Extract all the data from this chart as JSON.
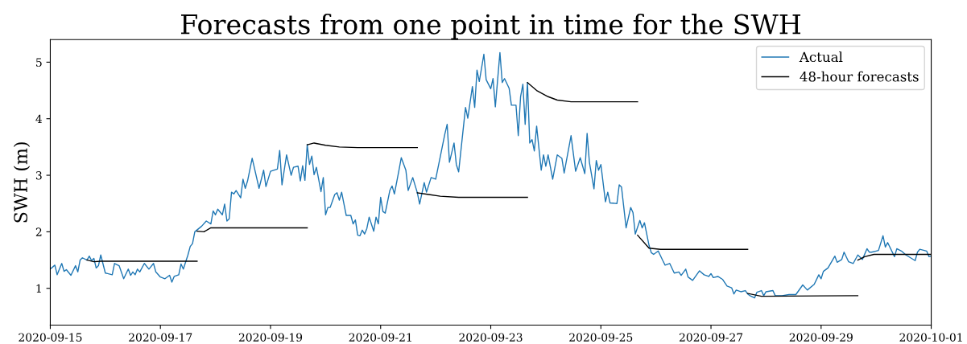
{
  "chart_data": {
    "type": "line",
    "title": "Forecasts from one point in time for the SWH",
    "ylabel": "SWH (m)",
    "xlim": [
      "2020-09-15",
      "2020-10-01"
    ],
    "xticks": [
      "2020-09-15",
      "2020-09-17",
      "2020-09-19",
      "2020-09-21",
      "2020-09-23",
      "2020-09-25",
      "2020-09-27",
      "2020-09-29",
      "2020-10-01"
    ],
    "ylim": [
      0.35,
      5.4
    ],
    "yticks": [
      1,
      2,
      3,
      4,
      5
    ],
    "grid": false,
    "legend": "top right",
    "marker": "none",
    "line_style": "solid",
    "series": [
      {
        "name": "Actual",
        "color": "#1f77b4",
        "x": [
          "2020-09-15T00:00",
          "2020-09-15T02:00",
          "2020-09-15T03:00",
          "2020-09-15T05:00",
          "2020-09-15T06:00",
          "2020-09-15T07:00",
          "2020-09-15T09:00",
          "2020-09-15T11:00",
          "2020-09-15T12:00",
          "2020-09-15T13:00",
          "2020-09-15T14:00",
          "2020-09-15T16:00",
          "2020-09-15T17:00",
          "2020-09-15T18:00",
          "2020-09-15T19:00",
          "2020-09-15T20:00",
          "2020-09-15T21:00",
          "2020-09-15T22:00",
          "2020-09-16T00:00",
          "2020-09-16T01:00",
          "2020-09-16T03:00",
          "2020-09-16T04:00",
          "2020-09-16T06:00",
          "2020-09-16T08:00",
          "2020-09-16T10:00",
          "2020-09-16T11:00",
          "2020-09-16T12:00",
          "2020-09-16T13:00",
          "2020-09-16T14:00",
          "2020-09-16T15:00",
          "2020-09-16T17:00",
          "2020-09-16T19:00",
          "2020-09-16T21:00",
          "2020-09-16T22:00",
          "2020-09-17T00:00",
          "2020-09-17T02:00",
          "2020-09-17T04:00",
          "2020-09-17T05:00",
          "2020-09-17T06:00",
          "2020-09-17T08:00",
          "2020-09-17T09:00",
          "2020-09-17T10:00",
          "2020-09-17T12:00",
          "2020-09-17T13:00",
          "2020-09-17T14:00",
          "2020-09-17T15:00",
          "2020-09-17T18:00",
          "2020-09-17T20:00",
          "2020-09-17T22:00",
          "2020-09-17T23:00",
          "2020-09-18T00:00",
          "2020-09-18T01:00",
          "2020-09-18T03:00",
          "2020-09-18T04:00",
          "2020-09-18T05:00",
          "2020-09-18T06:00",
          "2020-09-18T07:00",
          "2020-09-18T08:00",
          "2020-09-18T09:00",
          "2020-09-18T11:00",
          "2020-09-18T12:00",
          "2020-09-18T13:00",
          "2020-09-18T14:00",
          "2020-09-18T16:00",
          "2020-09-18T19:00",
          "2020-09-18T21:00",
          "2020-09-18T22:00",
          "2020-09-19T00:00",
          "2020-09-19T03:00",
          "2020-09-19T04:00",
          "2020-09-19T05:00",
          "2020-09-19T07:00",
          "2020-09-19T09:00",
          "2020-09-19T10:00",
          "2020-09-19T12:00",
          "2020-09-19T13:00",
          "2020-09-19T14:00",
          "2020-09-19T15:00",
          "2020-09-19T16:00",
          "2020-09-19T17:00",
          "2020-09-19T18:00",
          "2020-09-19T19:00",
          "2020-09-19T20:00",
          "2020-09-19T22:00",
          "2020-09-19T23:00",
          "2020-09-20T00:00",
          "2020-09-20T01:00",
          "2020-09-20T02:00",
          "2020-09-20T04:00",
          "2020-09-20T05:00",
          "2020-09-20T06:00",
          "2020-09-20T07:00",
          "2020-09-20T09:00",
          "2020-09-20T11:00",
          "2020-09-20T12:00",
          "2020-09-20T13:00",
          "2020-09-20T14:00",
          "2020-09-20T15:00",
          "2020-09-20T16:00",
          "2020-09-20T17:00",
          "2020-09-20T18:00",
          "2020-09-20T19:00",
          "2020-09-20T21:00",
          "2020-09-20T22:00",
          "2020-09-20T23:00",
          "2020-09-21T00:00",
          "2020-09-21T01:00",
          "2020-09-21T02:00",
          "2020-09-21T04:00",
          "2020-09-21T05:00",
          "2020-09-21T06:00",
          "2020-09-21T08:00",
          "2020-09-21T09:00",
          "2020-09-21T11:00",
          "2020-09-21T12:00",
          "2020-09-21T14:00",
          "2020-09-21T16:00",
          "2020-09-21T17:00",
          "2020-09-21T19:00",
          "2020-09-21T20:00",
          "2020-09-21T22:00",
          "2020-09-22T00:00",
          "2020-09-22T02:00",
          "2020-09-22T04:00",
          "2020-09-22T05:00",
          "2020-09-22T06:00",
          "2020-09-22T08:00",
          "2020-09-22T09:00",
          "2020-09-22T10:00",
          "2020-09-22T13:00",
          "2020-09-22T14:00",
          "2020-09-22T16:00",
          "2020-09-22T17:00",
          "2020-09-22T18:00",
          "2020-09-22T19:00",
          "2020-09-22T21:00",
          "2020-09-22T22:00",
          "2020-09-23T00:00",
          "2020-09-23T01:00",
          "2020-09-23T02:00",
          "2020-09-23T04:00",
          "2020-09-23T05:00",
          "2020-09-23T06:00",
          "2020-09-23T08:00",
          "2020-09-23T09:00",
          "2020-09-23T11:00",
          "2020-09-23T12:00",
          "2020-09-23T13:00",
          "2020-09-23T14:00",
          "2020-09-23T15:00",
          "2020-09-23T16:00",
          "2020-09-23T17:00",
          "2020-09-23T18:00",
          "2020-09-23T19:00",
          "2020-09-23T20:00",
          "2020-09-23T22:00",
          "2020-09-23T23:00",
          "2020-09-24T00:00",
          "2020-09-24T01:00",
          "2020-09-24T03:00",
          "2020-09-24T05:00",
          "2020-09-24T07:00",
          "2020-09-24T08:00",
          "2020-09-24T11:00",
          "2020-09-24T13:00",
          "2020-09-24T15:00",
          "2020-09-24T17:00",
          "2020-09-24T18:00",
          "2020-09-24T19:00",
          "2020-09-24T21:00",
          "2020-09-24T22:00",
          "2020-09-24T23:00",
          "2020-09-25T00:00",
          "2020-09-25T02:00",
          "2020-09-25T03:00",
          "2020-09-25T04:00",
          "2020-09-25T07:00",
          "2020-09-25T08:00",
          "2020-09-25T09:00",
          "2020-09-25T10:00",
          "2020-09-25T11:00",
          "2020-09-25T13:00",
          "2020-09-25T14:00",
          "2020-09-25T15:00",
          "2020-09-25T17:00",
          "2020-09-25T18:00",
          "2020-09-25T19:00",
          "2020-09-25T21:00",
          "2020-09-25T22:00",
          "2020-09-25T23:00",
          "2020-09-26T01:00",
          "2020-09-26T03:00",
          "2020-09-26T04:00",
          "2020-09-26T06:00",
          "2020-09-26T08:00",
          "2020-09-26T10:00",
          "2020-09-26T11:00",
          "2020-09-26T13:00",
          "2020-09-26T14:00",
          "2020-09-26T16:00",
          "2020-09-26T19:00",
          "2020-09-26T21:00",
          "2020-09-26T23:00",
          "2020-09-27T00:00",
          "2020-09-27T01:00",
          "2020-09-27T03:00",
          "2020-09-27T05:00",
          "2020-09-27T07:00",
          "2020-09-27T09:00",
          "2020-09-27T10:00",
          "2020-09-27T11:00",
          "2020-09-27T13:00",
          "2020-09-27T15:00",
          "2020-09-27T16:00",
          "2020-09-27T17:00",
          "2020-09-27T19:00",
          "2020-09-27T20:00",
          "2020-09-27T22:00",
          "2020-09-27T23:00",
          "2020-09-28T00:00",
          "2020-09-28T03:00",
          "2020-09-28T04:00",
          "2020-09-28T07:00",
          "2020-09-28T10:00",
          "2020-09-28T13:00",
          "2020-09-28T16:00",
          "2020-09-28T18:00",
          "2020-09-28T21:00",
          "2020-09-28T23:00",
          "2020-09-29T00:00",
          "2020-09-29T01:00",
          "2020-09-29T03:00",
          "2020-09-29T06:00",
          "2020-09-29T07:00",
          "2020-09-29T09:00",
          "2020-09-29T10:00",
          "2020-09-29T12:00",
          "2020-09-29T14:00",
          "2020-09-29T16:00",
          "2020-09-29T18:00",
          "2020-09-29T20:00",
          "2020-09-29T21:00",
          "2020-09-29T22:00",
          "2020-09-30T00:00",
          "2020-09-30T01:00",
          "2020-09-30T03:00",
          "2020-09-30T04:00",
          "2020-09-30T05:00",
          "2020-09-30T08:00",
          "2020-09-30T09:00",
          "2020-09-30T11:00",
          "2020-09-30T13:00",
          "2020-09-30T15:00",
          "2020-09-30T17:00",
          "2020-09-30T18:00",
          "2020-09-30T19:00",
          "2020-09-30T22:00",
          "2020-09-30T23:00",
          "2020-10-01T00:00"
        ],
        "values": [
          1.34,
          1.41,
          1.24,
          1.44,
          1.3,
          1.33,
          1.23,
          1.4,
          1.29,
          1.5,
          1.54,
          1.5,
          1.57,
          1.49,
          1.53,
          1.36,
          1.4,
          1.59,
          1.27,
          1.26,
          1.24,
          1.44,
          1.4,
          1.17,
          1.34,
          1.23,
          1.29,
          1.24,
          1.34,
          1.29,
          1.44,
          1.34,
          1.44,
          1.29,
          1.2,
          1.17,
          1.23,
          1.11,
          1.21,
          1.24,
          1.43,
          1.34,
          1.59,
          1.74,
          1.79,
          2.0,
          2.1,
          2.19,
          2.14,
          2.37,
          2.3,
          2.4,
          2.3,
          2.49,
          2.19,
          2.23,
          2.7,
          2.67,
          2.73,
          2.6,
          2.93,
          2.77,
          2.9,
          3.3,
          2.77,
          3.09,
          2.8,
          3.07,
          3.11,
          3.44,
          2.83,
          3.36,
          3.0,
          3.14,
          3.16,
          2.9,
          3.17,
          2.91,
          3.54,
          3.19,
          3.34,
          3.01,
          3.14,
          2.71,
          2.96,
          2.3,
          2.43,
          2.43,
          2.66,
          2.69,
          2.56,
          2.7,
          2.29,
          2.29,
          2.14,
          2.21,
          1.94,
          1.93,
          2.03,
          1.96,
          2.06,
          2.26,
          2.01,
          2.26,
          2.14,
          2.61,
          2.36,
          2.33,
          2.73,
          2.81,
          2.67,
          3.09,
          3.31,
          3.09,
          2.73,
          2.96,
          2.69,
          2.49,
          2.87,
          2.7,
          2.96,
          2.93,
          3.33,
          3.73,
          3.9,
          3.23,
          3.57,
          3.19,
          3.06,
          4.2,
          4.01,
          4.57,
          4.2,
          4.86,
          4.66,
          5.14,
          4.69,
          4.53,
          4.71,
          4.21,
          5.17,
          4.64,
          4.71,
          4.54,
          4.24,
          4.24,
          3.7,
          4.39,
          4.61,
          3.9,
          4.64,
          3.57,
          3.63,
          3.43,
          3.87,
          3.09,
          3.36,
          3.16,
          3.36,
          2.93,
          3.36,
          3.3,
          3.04,
          3.7,
          3.07,
          3.31,
          3.03,
          3.74,
          3.23,
          2.76,
          3.26,
          3.09,
          3.19,
          2.53,
          2.7,
          2.51,
          2.5,
          2.83,
          2.79,
          2.43,
          2.07,
          2.43,
          2.34,
          1.96,
          2.2,
          2.07,
          2.16,
          1.76,
          1.63,
          1.6,
          1.66,
          1.49,
          1.41,
          1.44,
          1.27,
          1.29,
          1.23,
          1.34,
          1.2,
          1.14,
          1.31,
          1.24,
          1.21,
          1.26,
          1.19,
          1.21,
          1.16,
          1.04,
          1.01,
          0.9,
          0.97,
          0.94,
          0.96,
          0.9,
          0.87,
          0.83,
          0.93,
          0.96,
          0.87,
          0.94,
          0.96,
          0.87,
          0.87,
          0.89,
          0.89,
          1.06,
          0.97,
          1.07,
          1.24,
          1.17,
          1.3,
          1.36,
          1.57,
          1.46,
          1.51,
          1.64,
          1.47,
          1.44,
          1.59,
          1.51,
          1.7,
          1.64,
          1.64,
          1.66,
          1.67,
          1.93,
          1.73,
          1.81,
          1.56,
          1.7,
          1.66,
          1.59,
          1.54,
          1.49,
          1.64,
          1.69,
          1.66,
          1.56,
          1.57
        ]
      },
      {
        "name": "48-hour forecasts",
        "color": "#000000",
        "x": [
          "2020-09-15T16:00",
          "2020-09-15T19:00",
          "2020-09-15T22:00",
          "2020-09-17T16:00"
        ],
        "values": [
          1.5,
          1.47,
          1.48,
          1.48
        ]
      },
      {
        "color": "#000000",
        "x": [
          "2020-09-17T16:00",
          "2020-09-17T19:00",
          "2020-09-17T22:00",
          "2020-09-19T16:00"
        ],
        "values": [
          2.01,
          2.0,
          2.07,
          2.07
        ]
      },
      {
        "color": "#000000",
        "x": [
          "2020-09-19T16:00",
          "2020-09-19T19:00",
          "2020-09-20T00:00",
          "2020-09-20T06:00",
          "2020-09-20T14:00",
          "2020-09-21T16:00"
        ],
        "values": [
          3.54,
          3.57,
          3.53,
          3.5,
          3.49,
          3.49
        ]
      },
      {
        "color": "#000000",
        "x": [
          "2020-09-21T16:00",
          "2020-09-21T21:00",
          "2020-09-22T02:00",
          "2020-09-22T10:00",
          "2020-09-23T16:00"
        ],
        "values": [
          2.69,
          2.66,
          2.63,
          2.61,
          2.61
        ]
      },
      {
        "color": "#000000",
        "x": [
          "2020-09-23T16:00",
          "2020-09-23T20:00",
          "2020-09-24T01:00",
          "2020-09-24T05:00",
          "2020-09-24T11:00",
          "2020-09-25T16:00"
        ],
        "values": [
          4.64,
          4.5,
          4.39,
          4.33,
          4.3,
          4.3
        ]
      },
      {
        "color": "#000000",
        "x": [
          "2020-09-25T16:00",
          "2020-09-25T21:00",
          "2020-09-26T02:00",
          "2020-09-27T16:00"
        ],
        "values": [
          1.94,
          1.71,
          1.69,
          1.69
        ]
      },
      {
        "color": "#000000",
        "x": [
          "2020-09-27T16:00",
          "2020-09-27T22:00",
          "2020-09-29T16:00"
        ],
        "values": [
          0.91,
          0.86,
          0.87
        ]
      },
      {
        "color": "#000000",
        "x": [
          "2020-09-29T16:00",
          "2020-09-29T19:00",
          "2020-09-29T23:00",
          "2020-10-01T00:00"
        ],
        "values": [
          1.5,
          1.56,
          1.6,
          1.6
        ]
      }
    ]
  }
}
